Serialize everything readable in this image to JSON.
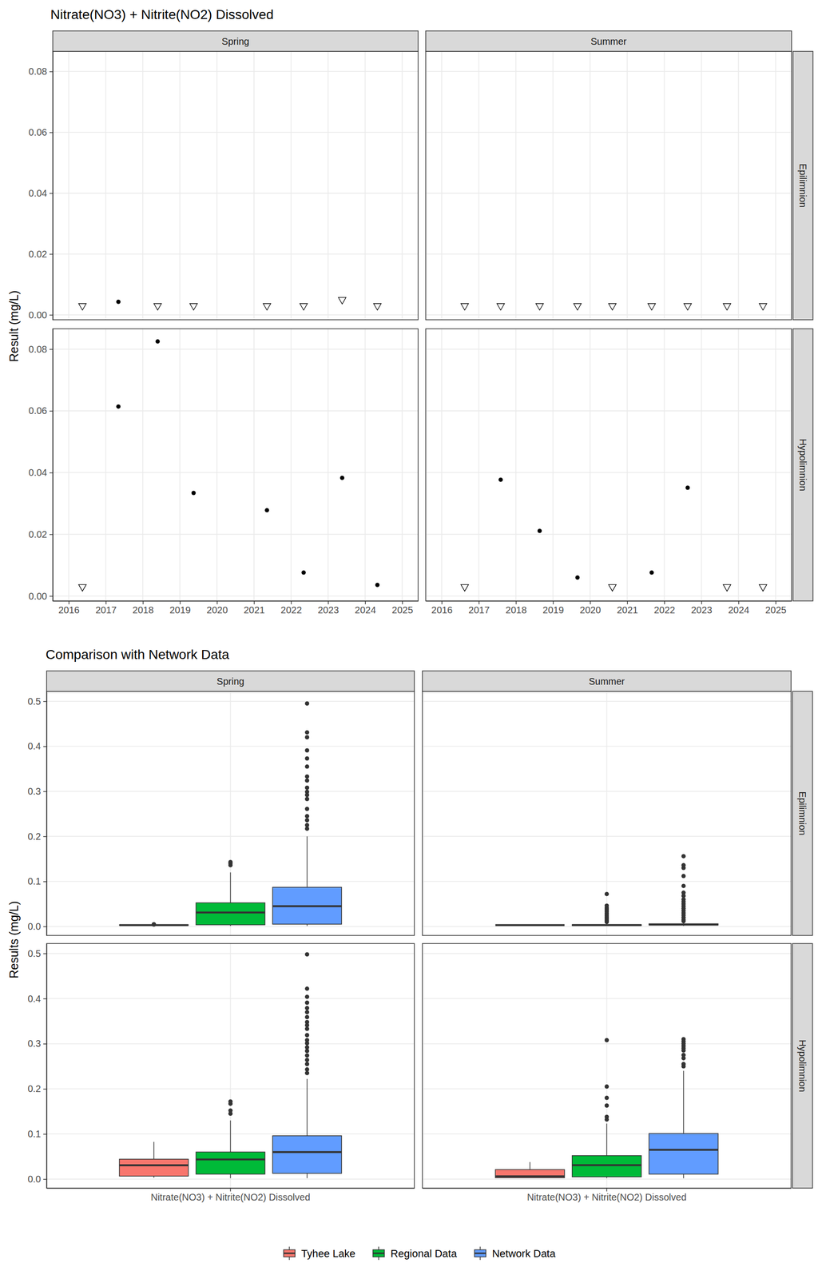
{
  "chart_data": [
    {
      "type": "scatter",
      "title": "Nitrate(NO3) + Nitrite(NO2) Dissolved",
      "y_label": "Result (mg/L)",
      "columns": [
        "Spring",
        "Summer"
      ],
      "rows": [
        "Epilimnion",
        "Hypolimnion"
      ],
      "xlim": [
        2015.57,
        2025.43
      ],
      "xticks": [
        2016,
        2017,
        2018,
        2019,
        2020,
        2021,
        2022,
        2023,
        2024,
        2025
      ],
      "ylim": [
        -0.0016,
        0.0866
      ],
      "yticks": [
        {
          "value": 0,
          "label": "0.00"
        },
        {
          "value": 0.02,
          "label": "0.02"
        },
        {
          "value": 0.04,
          "label": "0.04"
        },
        {
          "value": 0.06,
          "label": "0.06"
        },
        {
          "value": 0.08,
          "label": "0.08"
        }
      ],
      "grid": true,
      "panels": [
        [
          {
            "series": [
              {
                "marker": "triangle-down",
                "color": "#000000",
                "x": [
                  2016.37,
                  2018.4,
                  2019.37,
                  2021.35,
                  2022.34,
                  2023.38,
                  2024.33
                ],
                "values": [
                  0.003,
                  0.003,
                  0.003,
                  0.003,
                  0.003,
                  0.005,
                  0.003
                ]
              },
              {
                "marker": "circle",
                "color": "#000000",
                "x": [
                  2017.34
                ],
                "values": [
                  0.0043
                ]
              }
            ]
          },
          {
            "series": [
              {
                "marker": "triangle-down",
                "color": "#000000",
                "x": [
                  2016.62,
                  2017.59,
                  2018.64,
                  2019.66,
                  2020.6,
                  2021.66,
                  2022.63,
                  2023.69,
                  2024.66
                ],
                "values": [
                  0.003,
                  0.003,
                  0.003,
                  0.003,
                  0.003,
                  0.003,
                  0.003,
                  0.003,
                  0.003
                ]
              }
            ]
          }
        ],
        [
          {
            "series": [
              {
                "marker": "triangle-down",
                "color": "#000000",
                "x": [
                  2016.37
                ],
                "values": [
                  0.003
                ]
              },
              {
                "marker": "circle",
                "color": "#000000",
                "x": [
                  2017.34,
                  2018.4,
                  2019.37,
                  2021.35,
                  2022.34,
                  2023.38,
                  2024.33
                ],
                "values": [
                  0.0614,
                  0.0825,
                  0.0334,
                  0.0278,
                  0.0076,
                  0.0383,
                  0.0036
                ]
              }
            ]
          },
          {
            "series": [
              {
                "marker": "triangle-down",
                "color": "#000000",
                "x": [
                  2016.62,
                  2020.6,
                  2023.69,
                  2024.66
                ],
                "values": [
                  0.003,
                  0.003,
                  0.003,
                  0.003
                ]
              },
              {
                "marker": "circle",
                "color": "#000000",
                "x": [
                  2017.59,
                  2018.64,
                  2019.66,
                  2021.66,
                  2022.63
                ],
                "values": [
                  0.0377,
                  0.0211,
                  0.006,
                  0.0076,
                  0.0351
                ]
              }
            ]
          }
        ]
      ]
    },
    {
      "type": "box",
      "title": "Comparison with Network Data",
      "y_label": "Results (mg/L)",
      "categories": [
        "Nitrate(NO3) + Nitrite(NO2) Dissolved"
      ],
      "columns": [
        "Spring",
        "Summer"
      ],
      "rows": [
        "Epilimnion",
        "Hypolimnion"
      ],
      "ylim": [
        -0.02,
        0.522
      ],
      "yticks": [
        {
          "value": 0,
          "label": "0.0"
        },
        0.1,
        0.2,
        0.3,
        0.4,
        0.5
      ],
      "grid": true,
      "legend": "bottom",
      "series": [
        {
          "name": "Tyhee Lake",
          "color": "#F8766D"
        },
        {
          "name": "Regional Data",
          "color": "#00BA38"
        },
        {
          "name": "Network Data",
          "color": "#619CFF"
        }
      ],
      "panels": [
        [
          {
            "boxes": [
              {
                "low": 0.003,
                "q1": 0.003,
                "median": 0.003,
                "q3": 0.0033,
                "high": 0.003,
                "outliers": [
                  0.0043,
                  0.0048
                ]
              },
              {
                "low": 0.001,
                "q1": 0.0036,
                "median": 0.031,
                "q3": 0.0525,
                "high": 0.12,
                "outliers": [
                  0.136,
                  0.14,
                  0.143
                ]
              },
              {
                "low": 0.001,
                "q1": 0.005,
                "median": 0.045,
                "q3": 0.087,
                "high": 0.2,
                "outliers": [
                  0.217,
                  0.225,
                  0.236,
                  0.245,
                  0.261,
                  0.283,
                  0.292,
                  0.299,
                  0.308,
                  0.324,
                  0.333,
                  0.355,
                  0.373,
                  0.391,
                  0.42,
                  0.431,
                  0.495
                ]
              }
            ]
          },
          {
            "boxes": [
              {
                "low": 0.003,
                "q1": 0.003,
                "median": 0.003,
                "q3": 0.003,
                "high": 0.003,
                "outliers": []
              },
              {
                "low": 0.001,
                "q1": 0.002,
                "median": 0.003,
                "q3": 0.004,
                "high": 0.007,
                "outliers": [
                  0.01,
                  0.013,
                  0.017,
                  0.021,
                  0.025,
                  0.029,
                  0.033,
                  0.037,
                  0.041,
                  0.046,
                  0.072
                ]
              },
              {
                "low": 0.001,
                "q1": 0.003,
                "median": 0.004,
                "q3": 0.006,
                "high": 0.01,
                "outliers": [
                  0.012,
                  0.015,
                  0.02,
                  0.025,
                  0.03,
                  0.035,
                  0.04,
                  0.045,
                  0.05,
                  0.055,
                  0.06,
                  0.068,
                  0.075,
                  0.09,
                  0.112,
                  0.13,
                  0.136,
                  0.156
                ]
              }
            ]
          }
        ],
        [
          {
            "boxes": [
              {
                "low": 0.003,
                "q1": 0.0066,
                "median": 0.0306,
                "q3": 0.0441,
                "high": 0.0825,
                "outliers": []
              },
              {
                "low": 0.002,
                "q1": 0.011,
                "median": 0.0435,
                "q3": 0.06,
                "high": 0.13,
                "outliers": [
                  0.145,
                  0.152,
                  0.167,
                  0.172
                ]
              },
              {
                "low": 0.002,
                "q1": 0.0127,
                "median": 0.06,
                "q3": 0.096,
                "high": 0.222,
                "outliers": [
                  0.235,
                  0.243,
                  0.255,
                  0.264,
                  0.274,
                  0.284,
                  0.292,
                  0.301,
                  0.308,
                  0.319,
                  0.333,
                  0.341,
                  0.348,
                  0.359,
                  0.37,
                  0.379,
                  0.391,
                  0.404,
                  0.422,
                  0.498
                ]
              }
            ]
          },
          {
            "boxes": [
              {
                "low": 0.003,
                "q1": 0.003,
                "median": 0.006,
                "q3": 0.0211,
                "high": 0.0377,
                "outliers": []
              },
              {
                "low": 0.002,
                "q1": 0.005,
                "median": 0.031,
                "q3": 0.052,
                "high": 0.123,
                "outliers": [
                  0.132,
                  0.138,
                  0.163,
                  0.18,
                  0.205,
                  0.308
                ]
              },
              {
                "low": 0.002,
                "q1": 0.011,
                "median": 0.065,
                "q3": 0.101,
                "high": 0.24,
                "outliers": [
                  0.25,
                  0.255,
                  0.268,
                  0.275,
                  0.285,
                  0.29,
                  0.295,
                  0.3,
                  0.305,
                  0.31
                ]
              }
            ]
          }
        ]
      ]
    }
  ]
}
